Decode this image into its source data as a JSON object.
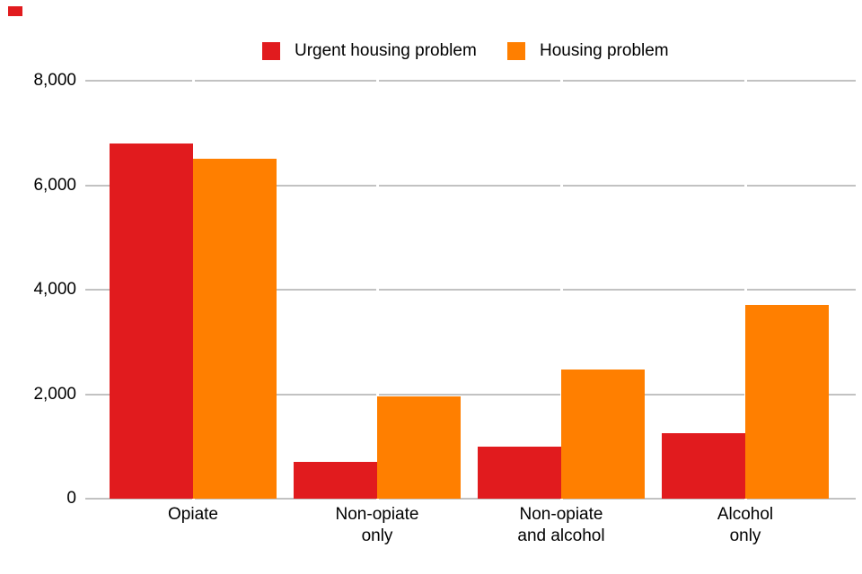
{
  "chart_data": {
    "type": "bar",
    "title": "",
    "categories": [
      "Opiate",
      "Non-opiate only",
      "Non-opiate and alcohol",
      "Alcohol only"
    ],
    "category_lines": [
      [
        "Opiate"
      ],
      [
        "Non-opiate",
        "only"
      ],
      [
        "Non-opiate",
        "and alcohol"
      ],
      [
        "Alcohol",
        "only"
      ]
    ],
    "series": [
      {
        "name": "Urgent housing problem",
        "color": "#e11b1e",
        "values": [
          6800,
          700,
          1000,
          1250
        ]
      },
      {
        "name": "Housing problem",
        "color": "#ff7f00",
        "values": [
          6500,
          1950,
          2480,
          3700
        ]
      }
    ],
    "y_axis": {
      "min": 0,
      "max": 8000,
      "tick_values": [
        0,
        2000,
        4000,
        6000,
        8000
      ],
      "tick_labels": [
        "0",
        "2,000",
        "4,000",
        "6,000",
        "8,000"
      ]
    },
    "grid": true,
    "gridline_color": "#c2c2c2",
    "legend_position": "top",
    "background": "#ffffff",
    "text_color": "#000000"
  },
  "decorations": {
    "corner_marker_color": "#e11b1e"
  }
}
